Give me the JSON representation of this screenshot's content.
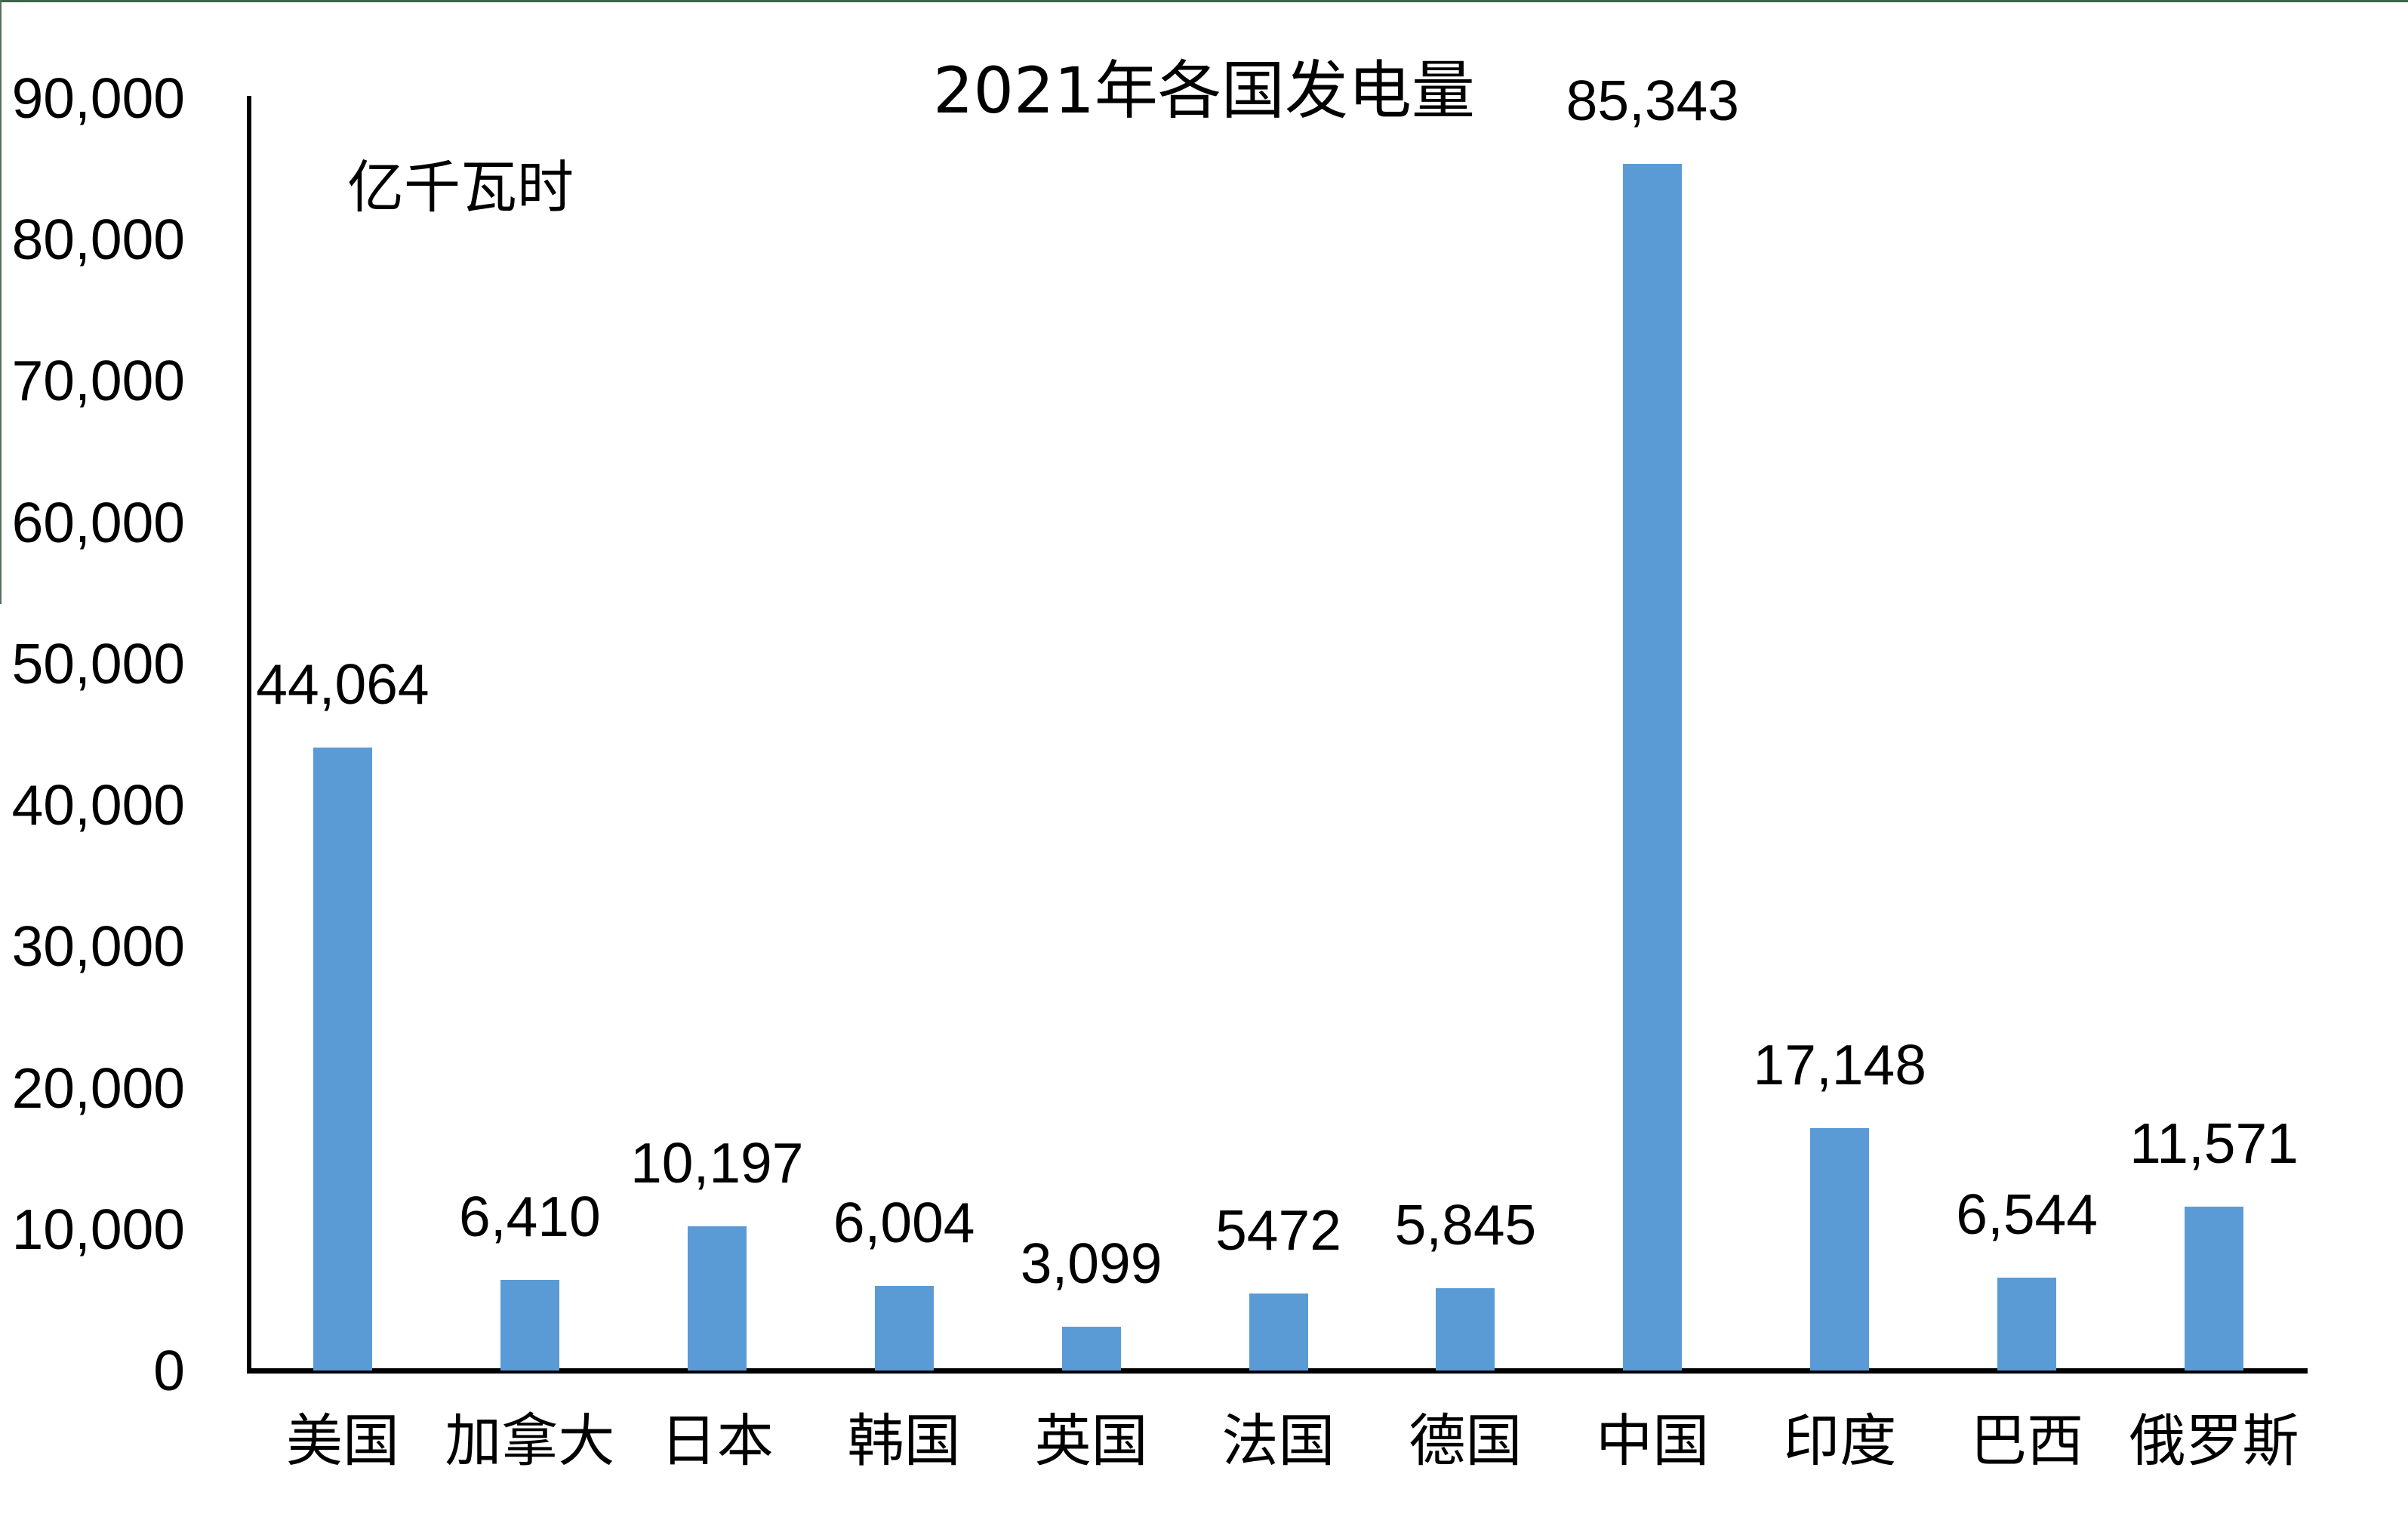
{
  "chart_data": {
    "type": "bar",
    "title": "2021年各国发电量",
    "unit_label": "亿千瓦时",
    "categories": [
      "美国",
      "加拿大",
      "日本",
      "韩国",
      "英国",
      "法国",
      "德国",
      "中国",
      "印度",
      "巴西",
      "俄罗斯"
    ],
    "values": [
      44064,
      6410,
      10197,
      6004,
      3099,
      5472,
      5845,
      85343,
      17148,
      6544,
      11571
    ],
    "value_labels": [
      "44,064",
      "6,410",
      "10,197",
      "6,004",
      "3,099",
      "5472",
      "5,845",
      "85,343",
      "17,148",
      "6,544",
      "11,571"
    ],
    "y_ticks": [
      {
        "label": "0",
        "value": 0
      },
      {
        "label": "10,000",
        "value": 10000
      },
      {
        "label": "20,000",
        "value": 20000
      },
      {
        "label": "30,000",
        "value": 30000
      },
      {
        "label": "40,000",
        "value": 40000
      },
      {
        "label": "50,000",
        "value": 50000
      },
      {
        "label": "60,000",
        "value": 60000
      },
      {
        "label": "70,000",
        "value": 70000
      },
      {
        "label": "80,000",
        "value": 80000
      },
      {
        "label": "90,000",
        "value": 90000
      }
    ],
    "ylim": [
      0,
      90000
    ],
    "grid": "off",
    "legend": "none",
    "bar_color": "#5B9BD5",
    "axis_color": "#000000",
    "text_color": "#000000",
    "background_color": "#FFFFFF"
  }
}
